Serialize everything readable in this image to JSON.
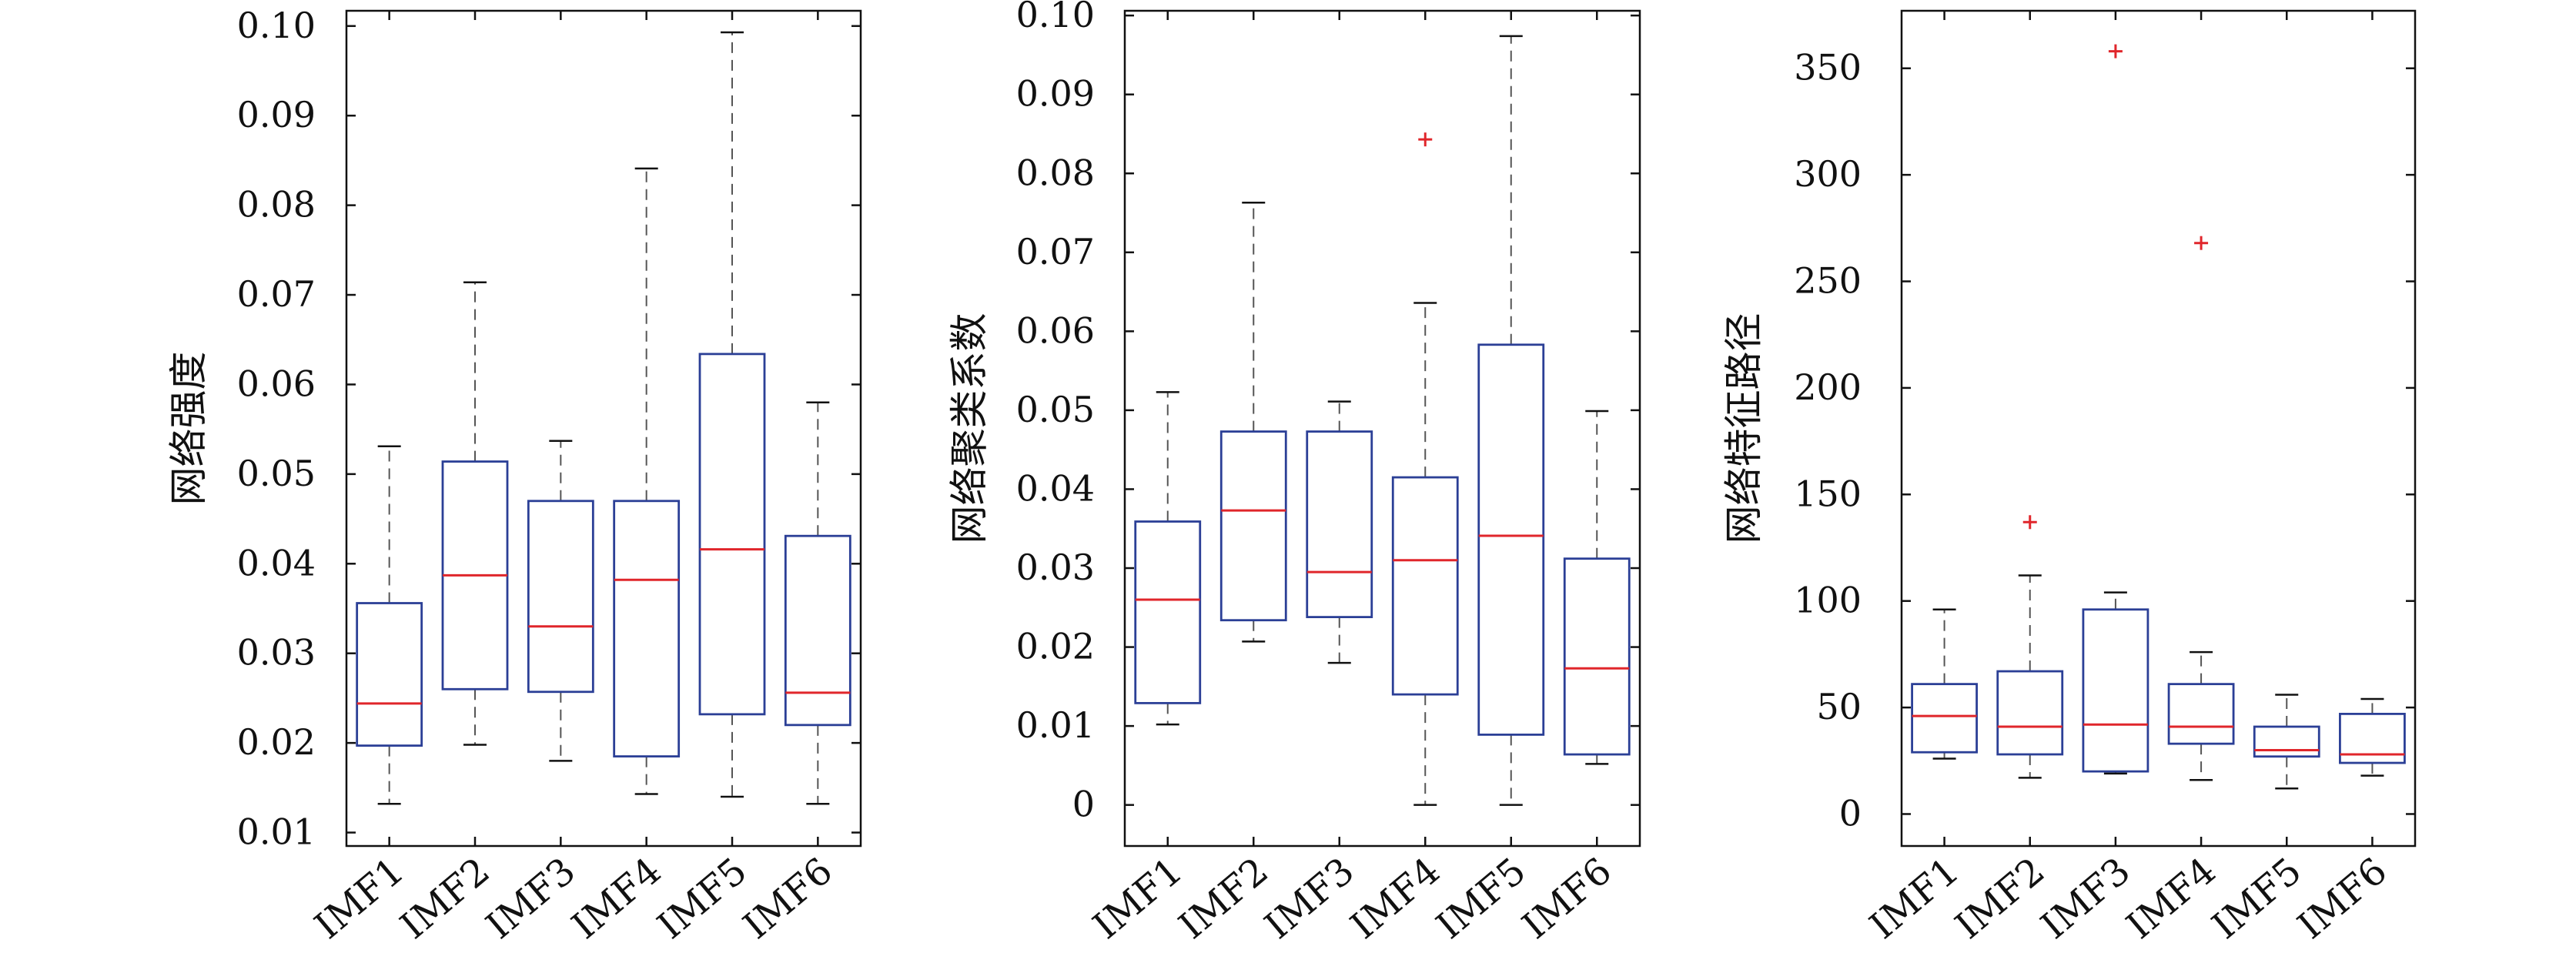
{
  "colors": {
    "box": "#2b3f96",
    "median": "#e0262b",
    "outlier": "#e0262b",
    "whisker": "#555555",
    "axis": "#111111"
  },
  "chart_data": [
    {
      "type": "box",
      "title": "",
      "ylabel": "网络强度",
      "xlabel": "",
      "categories": [
        "IMF1",
        "IMF2",
        "IMF3",
        "IMF4",
        "IMF5",
        "IMF6"
      ],
      "ylim": [
        0.0085,
        0.1017
      ],
      "yticks": [
        0.01,
        0.02,
        0.03,
        0.04,
        0.05,
        0.06,
        0.07,
        0.08,
        0.09,
        0.1
      ],
      "ytick_labels": [
        "0.01",
        "0.02",
        "0.03",
        "0.04",
        "0.05",
        "0.06",
        "0.07",
        "0.08",
        "0.09",
        "0.10"
      ],
      "grid": false,
      "boxes": [
        {
          "min": 0.0132,
          "q1": 0.0197,
          "median": 0.0244,
          "q3": 0.0356,
          "max": 0.0531,
          "outliers": []
        },
        {
          "min": 0.0198,
          "q1": 0.026,
          "median": 0.0387,
          "q3": 0.0514,
          "max": 0.0714,
          "outliers": []
        },
        {
          "min": 0.018,
          "q1": 0.0257,
          "median": 0.033,
          "q3": 0.047,
          "max": 0.0537,
          "outliers": []
        },
        {
          "min": 0.0143,
          "q1": 0.0185,
          "median": 0.0382,
          "q3": 0.047,
          "max": 0.0841,
          "outliers": []
        },
        {
          "min": 0.014,
          "q1": 0.0232,
          "median": 0.0416,
          "q3": 0.0634,
          "max": 0.0993,
          "outliers": []
        },
        {
          "min": 0.0132,
          "q1": 0.022,
          "median": 0.0256,
          "q3": 0.0431,
          "max": 0.058,
          "outliers": []
        }
      ]
    },
    {
      "type": "box",
      "title": "",
      "ylabel": "网络聚类系数",
      "xlabel": "",
      "categories": [
        "IMF1",
        "IMF2",
        "IMF3",
        "IMF4",
        "IMF5",
        "IMF6"
      ],
      "ylim": [
        -0.0052,
        0.1006
      ],
      "yticks": [
        0,
        0.01,
        0.02,
        0.03,
        0.04,
        0.05,
        0.06,
        0.07,
        0.08,
        0.09,
        0.1
      ],
      "ytick_labels": [
        "0",
        "0.01",
        "0.02",
        "0.03",
        "0.04",
        "0.05",
        "0.06",
        "0.07",
        "0.08",
        "0.09",
        "0.10"
      ],
      "grid": false,
      "boxes": [
        {
          "min": 0.0102,
          "q1": 0.0129,
          "median": 0.026,
          "q3": 0.0359,
          "max": 0.0523,
          "outliers": []
        },
        {
          "min": 0.0207,
          "q1": 0.0234,
          "median": 0.0373,
          "q3": 0.0473,
          "max": 0.0763,
          "outliers": []
        },
        {
          "min": 0.018,
          "q1": 0.0238,
          "median": 0.0295,
          "q3": 0.0473,
          "max": 0.0511,
          "outliers": []
        },
        {
          "min": 0.0,
          "q1": 0.014,
          "median": 0.031,
          "q3": 0.0415,
          "max": 0.0636,
          "outliers": [
            0.0843
          ]
        },
        {
          "min": 0.0,
          "q1": 0.0089,
          "median": 0.0341,
          "q3": 0.0583,
          "max": 0.0974,
          "outliers": []
        },
        {
          "min": 0.0052,
          "q1": 0.0064,
          "median": 0.0173,
          "q3": 0.0312,
          "max": 0.0499,
          "outliers": []
        }
      ]
    },
    {
      "type": "box",
      "title": "",
      "ylabel": "网络特征路径",
      "xlabel": "",
      "categories": [
        "IMF1",
        "IMF2",
        "IMF3",
        "IMF4",
        "IMF5",
        "IMF6"
      ],
      "ylim": [
        -15,
        377
      ],
      "yticks": [
        0,
        50,
        100,
        150,
        200,
        250,
        300,
        350
      ],
      "ytick_labels": [
        "0",
        "50",
        "100",
        "150",
        "200",
        "250",
        "300",
        "350"
      ],
      "grid": false,
      "boxes": [
        {
          "min": 26,
          "q1": 29,
          "median": 46,
          "q3": 61,
          "max": 96,
          "outliers": []
        },
        {
          "min": 17,
          "q1": 28,
          "median": 41,
          "q3": 67,
          "max": 112,
          "outliers": [
            137
          ]
        },
        {
          "min": 19,
          "q1": 20,
          "median": 42,
          "q3": 96,
          "max": 104,
          "outliers": [
            358
          ]
        },
        {
          "min": 16,
          "q1": 33,
          "median": 41,
          "q3": 61,
          "max": 76,
          "outliers": [
            268
          ]
        },
        {
          "min": 12,
          "q1": 27,
          "median": 30,
          "q3": 41,
          "max": 56,
          "outliers": []
        },
        {
          "min": 18,
          "q1": 24,
          "median": 28,
          "q3": 47,
          "max": 54,
          "outliers": []
        }
      ]
    }
  ]
}
